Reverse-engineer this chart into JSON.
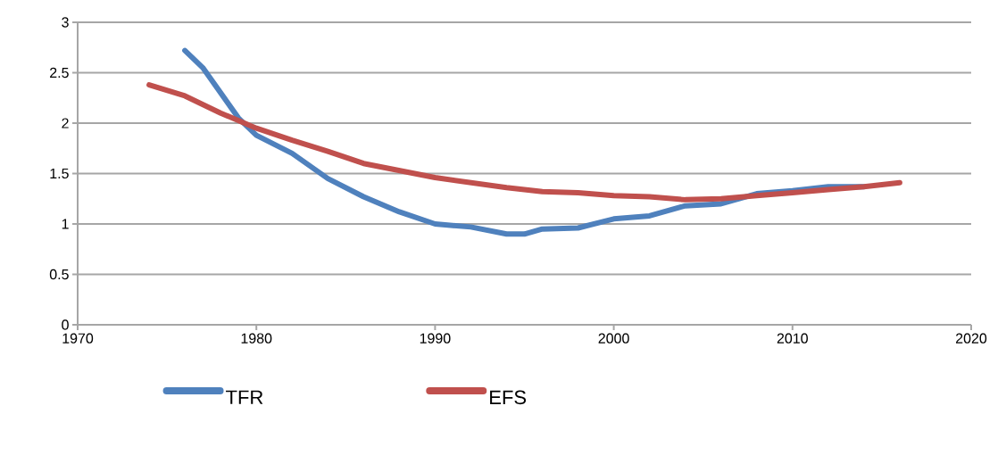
{
  "chart_data": {
    "type": "line",
    "xlim": [
      1970,
      2020
    ],
    "ylim": [
      0,
      3
    ],
    "xticks": [
      1970,
      1980,
      1990,
      2000,
      2010,
      2020
    ],
    "yticks": [
      0,
      0.5,
      1,
      1.5,
      2,
      2.5,
      3
    ],
    "grid": "y",
    "legend": "bottom",
    "marker": "none",
    "line_style": "solid",
    "series": [
      {
        "name": "TFR",
        "color": "#4f81bd",
        "x": [
          1976,
          1977,
          1978,
          1979,
          1980,
          1982,
          1984,
          1986,
          1988,
          1990,
          1992,
          1994,
          1995,
          1996,
          1998,
          2000,
          2002,
          2004,
          2006,
          2008,
          2010,
          2012,
          2014
        ],
        "values": [
          2.72,
          2.55,
          2.3,
          2.05,
          1.88,
          1.7,
          1.45,
          1.27,
          1.12,
          1.0,
          0.97,
          0.9,
          0.9,
          0.95,
          0.96,
          1.05,
          1.08,
          1.18,
          1.2,
          1.3,
          1.33,
          1.37,
          1.37
        ]
      },
      {
        "name": "EFS",
        "color": "#c0504d",
        "x": [
          1974,
          1976,
          1978,
          1980,
          1982,
          1984,
          1986,
          1988,
          1990,
          1992,
          1994,
          1996,
          1998,
          2000,
          2002,
          2004,
          2006,
          2008,
          2010,
          2012,
          2014,
          2016
        ],
        "values": [
          2.38,
          2.27,
          2.1,
          1.95,
          1.83,
          1.72,
          1.6,
          1.53,
          1.46,
          1.41,
          1.36,
          1.32,
          1.31,
          1.28,
          1.27,
          1.24,
          1.25,
          1.28,
          1.31,
          1.34,
          1.37,
          1.41
        ]
      }
    ]
  }
}
